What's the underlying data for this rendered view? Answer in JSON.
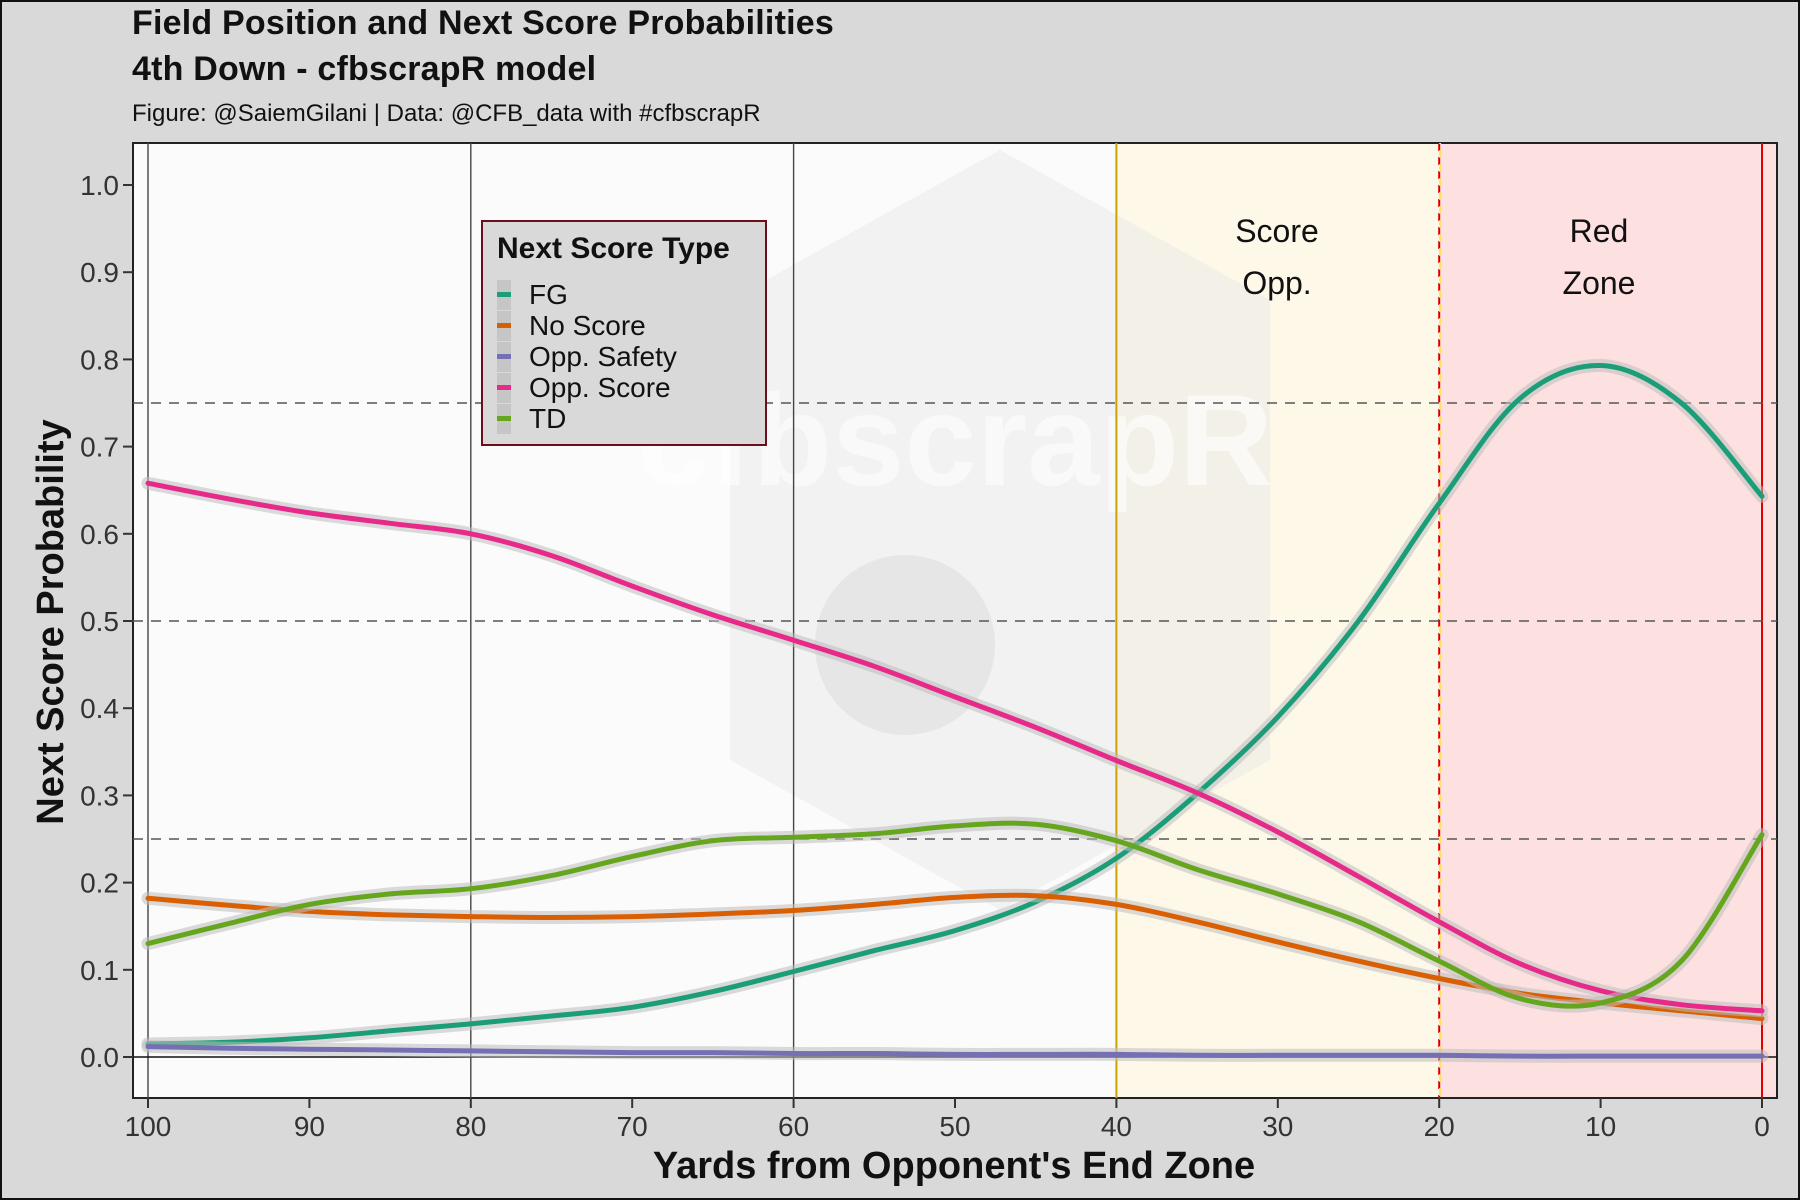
{
  "header": {
    "title_line1": "Field Position and Next Score Probabilities",
    "title_line2": "4th Down - cfbscrapR model",
    "caption": "Figure: @SaiemGilani | Data: @CFB_data with #cfbscrapR"
  },
  "watermark": "cfbscrapR",
  "zones": {
    "score_opp": [
      "Score",
      "Opp."
    ],
    "red_zone": [
      "Red",
      "Zone"
    ]
  },
  "legend": {
    "title": "Next Score Type",
    "items": [
      {
        "label": "FG",
        "color": "#1b9e77"
      },
      {
        "label": "No Score",
        "color": "#d95f02"
      },
      {
        "label": "Opp. Safety",
        "color": "#7570b3"
      },
      {
        "label": "Opp. Score",
        "color": "#e7298a"
      },
      {
        "label": "TD",
        "color": "#66a61e"
      }
    ]
  },
  "chart_data": {
    "type": "line",
    "title": "Field Position and Next Score Probabilities",
    "subtitle": "4th Down - cfbscrapR model",
    "xlabel": "Yards from Opponent's End Zone",
    "ylabel": "Next Score Probability",
    "xlim": [
      100,
      0
    ],
    "ylim": [
      0,
      1.0
    ],
    "x_ticks": [
      "100",
      "90",
      "80",
      "70",
      "60",
      "50",
      "40",
      "30",
      "20",
      "10",
      "0"
    ],
    "y_ticks": [
      "0.0",
      "0.1",
      "0.2",
      "0.3",
      "0.4",
      "0.5",
      "0.6",
      "0.7",
      "0.8",
      "0.9",
      "1.0"
    ],
    "reference_lines_y": [
      0.25,
      0.5,
      0.75
    ],
    "vertical_lines_x": [
      100,
      80,
      60,
      40,
      20,
      0
    ],
    "zones": [
      {
        "name": "Score Opp.",
        "from": 40,
        "to": 20,
        "color": "#fdf8e8"
      },
      {
        "name": "Red Zone",
        "from": 20,
        "to": 0,
        "color": "#fde0e0"
      }
    ],
    "x": [
      100,
      95,
      90,
      85,
      80,
      75,
      70,
      65,
      60,
      55,
      50,
      45,
      40,
      35,
      30,
      25,
      20,
      15,
      10,
      5,
      0
    ],
    "series": [
      {
        "name": "FG",
        "color": "#1b9e77",
        "values": [
          0.015,
          0.017,
          0.022,
          0.03,
          0.038,
          0.047,
          0.057,
          0.075,
          0.098,
          0.122,
          0.145,
          0.178,
          0.228,
          0.302,
          0.39,
          0.5,
          0.635,
          0.755,
          0.793,
          0.75,
          0.643
        ]
      },
      {
        "name": "No Score",
        "color": "#d95f02",
        "values": [
          0.182,
          0.174,
          0.167,
          0.163,
          0.161,
          0.16,
          0.161,
          0.164,
          0.168,
          0.175,
          0.183,
          0.185,
          0.175,
          0.155,
          0.132,
          0.11,
          0.09,
          0.073,
          0.062,
          0.053,
          0.044
        ]
      },
      {
        "name": "Opp. Safety",
        "color": "#7570b3",
        "values": [
          0.012,
          0.01,
          0.009,
          0.008,
          0.007,
          0.006,
          0.005,
          0.005,
          0.004,
          0.004,
          0.003,
          0.003,
          0.003,
          0.002,
          0.002,
          0.002,
          0.002,
          0.001,
          0.001,
          0.001,
          0.001
        ]
      },
      {
        "name": "Opp. Score",
        "color": "#e7298a",
        "values": [
          0.658,
          0.64,
          0.624,
          0.612,
          0.6,
          0.575,
          0.54,
          0.507,
          0.478,
          0.448,
          0.413,
          0.378,
          0.34,
          0.303,
          0.258,
          0.207,
          0.155,
          0.107,
          0.076,
          0.06,
          0.053
        ]
      },
      {
        "name": "TD",
        "color": "#66a61e",
        "values": [
          0.13,
          0.153,
          0.175,
          0.187,
          0.193,
          0.208,
          0.23,
          0.248,
          0.252,
          0.256,
          0.265,
          0.267,
          0.248,
          0.215,
          0.187,
          0.155,
          0.11,
          0.067,
          0.062,
          0.11,
          0.255
        ]
      }
    ]
  }
}
